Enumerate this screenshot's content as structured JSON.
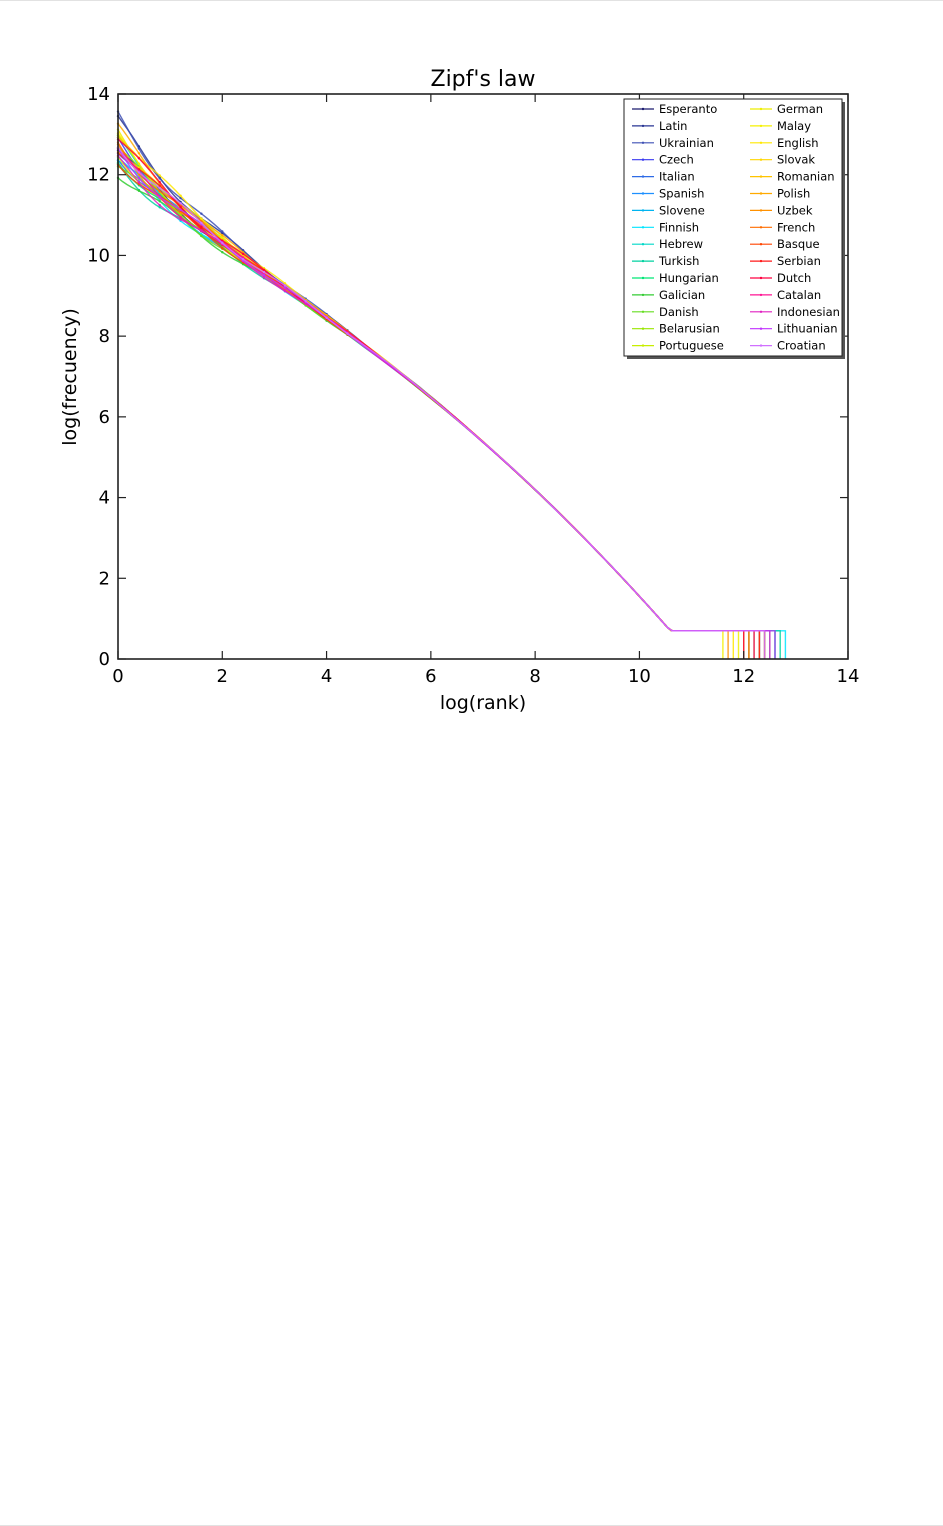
{
  "chart_data": {
    "type": "line",
    "title": "Zipf's law",
    "xlabel": "log(rank)",
    "ylabel": "log(frecuency)",
    "xlim": [
      0,
      14
    ],
    "ylim": [
      0,
      14
    ],
    "xticks": [
      "0",
      "2",
      "4",
      "6",
      "8",
      "10",
      "12",
      "14"
    ],
    "yticks": [
      "0",
      "2",
      "4",
      "6",
      "8",
      "10",
      "12",
      "14"
    ],
    "grid": false,
    "legend_position": "top-right",
    "series": [
      {
        "name": "Esperanto",
        "color": "#1a1a6e",
        "y0": 12.6,
        "end": 12.2
      },
      {
        "name": "Latin",
        "color": "#283593",
        "y0": 13.3,
        "end": 12.4
      },
      {
        "name": "Ukrainian",
        "color": "#3f51b5",
        "y0": 13.4,
        "end": 12.3
      },
      {
        "name": "Czech",
        "color": "#3a3af0",
        "y0": 12.9,
        "end": 12.1
      },
      {
        "name": "Italian",
        "color": "#2e6be6",
        "y0": 12.5,
        "end": 12.0
      },
      {
        "name": "Spanish",
        "color": "#1e90ff",
        "y0": 12.7,
        "end": 12.3
      },
      {
        "name": "Slovene",
        "color": "#00b4f0",
        "y0": 12.4,
        "end": 12.6
      },
      {
        "name": "Finnish",
        "color": "#00e5ff",
        "y0": 12.3,
        "end": 12.8
      },
      {
        "name": "Hebrew",
        "color": "#00d8c8",
        "y0": 12.8,
        "end": 12.5
      },
      {
        "name": "Turkish",
        "color": "#00d2a0",
        "y0": 12.2,
        "end": 12.7
      },
      {
        "name": "Hungarian",
        "color": "#00e676",
        "y0": 12.4,
        "end": 12.6
      },
      {
        "name": "Galician",
        "color": "#33cc33",
        "y0": 12.1,
        "end": 12.0
      },
      {
        "name": "Danish",
        "color": "#66dd22",
        "y0": 12.3,
        "end": 12.2
      },
      {
        "name": "Belarusian",
        "color": "#99e600",
        "y0": 12.6,
        "end": 12.4
      },
      {
        "name": "Portuguese",
        "color": "#c8ee00",
        "y0": 12.8,
        "end": 12.1
      },
      {
        "name": "German",
        "color": "#eeee00",
        "y0": 13.0,
        "end": 11.9
      },
      {
        "name": "Malay",
        "color": "#f5f000",
        "y0": 12.5,
        "end": 11.6
      },
      {
        "name": "English",
        "color": "#ffe800",
        "y0": 13.2,
        "end": 11.8
      },
      {
        "name": "Slovak",
        "color": "#ffd600",
        "y0": 12.7,
        "end": 12.2
      },
      {
        "name": "Romanian",
        "color": "#ffc400",
        "y0": 12.9,
        "end": 12.0
      },
      {
        "name": "Polish",
        "color": "#ffaa00",
        "y0": 13.1,
        "end": 12.3
      },
      {
        "name": "Uzbek",
        "color": "#ff9100",
        "y0": 12.6,
        "end": 11.7
      },
      {
        "name": "French",
        "color": "#ff6d00",
        "y0": 12.8,
        "end": 12.1
      },
      {
        "name": "Basque",
        "color": "#ff4500",
        "y0": 12.4,
        "end": 12.4
      },
      {
        "name": "Serbian",
        "color": "#ff1a1a",
        "y0": 12.7,
        "end": 12.3
      },
      {
        "name": "Dutch",
        "color": "#ff0040",
        "y0": 12.9,
        "end": 12.0
      },
      {
        "name": "Catalan",
        "color": "#ff1493",
        "y0": 12.5,
        "end": 12.2
      },
      {
        "name": "Indonesian",
        "color": "#e020c0",
        "y0": 12.3,
        "end": 12.5
      },
      {
        "name": "Lithuanian",
        "color": "#c030ff",
        "y0": 12.6,
        "end": 12.6
      },
      {
        "name": "Croatian",
        "color": "#d070ff",
        "y0": 12.8,
        "end": 12.4
      }
    ]
  }
}
